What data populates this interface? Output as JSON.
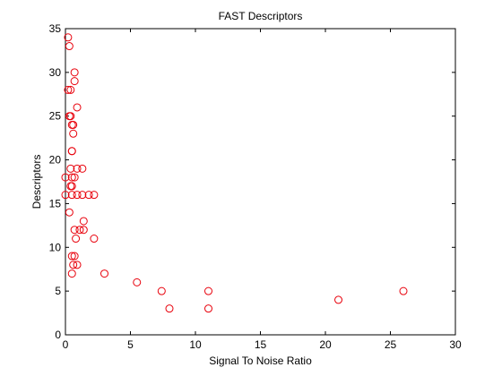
{
  "chart_data": {
    "type": "scatter",
    "title": "FAST Descriptors",
    "xlabel": "Signal To Noise Ratio",
    "ylabel": "Descriptors",
    "xlim": [
      0,
      30
    ],
    "ylim": [
      0,
      35
    ],
    "xticks": [
      0,
      5,
      10,
      15,
      20,
      25,
      30
    ],
    "yticks": [
      0,
      5,
      10,
      15,
      20,
      25,
      30,
      35
    ],
    "grid": false,
    "marker": "open-circle",
    "marker_color": "#e8000b",
    "points": [
      {
        "x": 0.2,
        "y": 34
      },
      {
        "x": 0.3,
        "y": 33
      },
      {
        "x": 0.7,
        "y": 30
      },
      {
        "x": 0.7,
        "y": 29
      },
      {
        "x": 0.2,
        "y": 28
      },
      {
        "x": 0.4,
        "y": 28
      },
      {
        "x": 0.9,
        "y": 26
      },
      {
        "x": 0.3,
        "y": 25
      },
      {
        "x": 0.4,
        "y": 25
      },
      {
        "x": 0.5,
        "y": 24
      },
      {
        "x": 0.6,
        "y": 24
      },
      {
        "x": 0.6,
        "y": 23
      },
      {
        "x": 0.5,
        "y": 21
      },
      {
        "x": 0.5,
        "y": 21
      },
      {
        "x": 0.4,
        "y": 19
      },
      {
        "x": 0.9,
        "y": 19
      },
      {
        "x": 1.3,
        "y": 19
      },
      {
        "x": 0.0,
        "y": 18
      },
      {
        "x": 0.5,
        "y": 18
      },
      {
        "x": 0.7,
        "y": 18
      },
      {
        "x": 0.4,
        "y": 17
      },
      {
        "x": 0.5,
        "y": 17
      },
      {
        "x": 0.0,
        "y": 16
      },
      {
        "x": 0.5,
        "y": 16
      },
      {
        "x": 0.9,
        "y": 16
      },
      {
        "x": 1.3,
        "y": 16
      },
      {
        "x": 1.8,
        "y": 16
      },
      {
        "x": 2.2,
        "y": 16
      },
      {
        "x": 0.3,
        "y": 14
      },
      {
        "x": 1.4,
        "y": 13
      },
      {
        "x": 0.7,
        "y": 12
      },
      {
        "x": 1.1,
        "y": 12
      },
      {
        "x": 1.4,
        "y": 12
      },
      {
        "x": 0.8,
        "y": 11
      },
      {
        "x": 2.2,
        "y": 11
      },
      {
        "x": 0.5,
        "y": 9
      },
      {
        "x": 0.7,
        "y": 9
      },
      {
        "x": 0.6,
        "y": 8
      },
      {
        "x": 0.9,
        "y": 8
      },
      {
        "x": 0.5,
        "y": 7
      },
      {
        "x": 3.0,
        "y": 7
      },
      {
        "x": 5.5,
        "y": 6
      },
      {
        "x": 7.4,
        "y": 5
      },
      {
        "x": 11.0,
        "y": 5
      },
      {
        "x": 26.0,
        "y": 5
      },
      {
        "x": 21.0,
        "y": 4
      },
      {
        "x": 8.0,
        "y": 3
      },
      {
        "x": 11.0,
        "y": 3
      }
    ]
  }
}
